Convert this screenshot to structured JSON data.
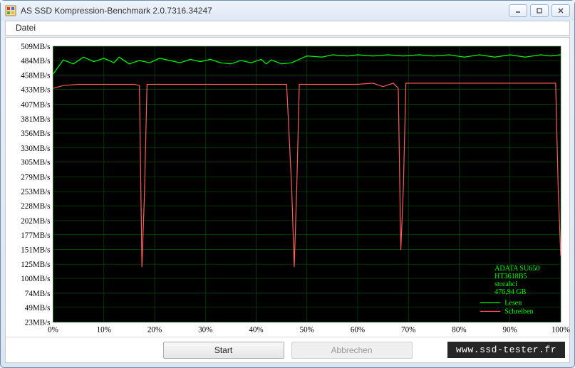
{
  "window": {
    "title": "AS SSD Kompression-Benchmark 2.0.7316.34247"
  },
  "menu": {
    "file": "Datei"
  },
  "chart": {
    "type": "line",
    "background_color": "#000000",
    "grid_color": "#004c00",
    "axis_text_color": "#000000",
    "axis_fontsize": 11,
    "y_axis": {
      "labels": [
        "509MB/s",
        "484MB/s",
        "458MB/s",
        "433MB/s",
        "407MB/s",
        "381MB/s",
        "356MB/s",
        "330MB/s",
        "305MB/s",
        "279MB/s",
        "253MB/s",
        "228MB/s",
        "202MB/s",
        "177MB/s",
        "151MB/s",
        "125MB/s",
        "100MB/s",
        "74MB/s",
        "49MB/s",
        "23MB/s"
      ],
      "values": [
        509,
        484,
        458,
        433,
        407,
        381,
        356,
        330,
        305,
        279,
        253,
        228,
        202,
        177,
        151,
        125,
        100,
        74,
        49,
        23
      ],
      "min": 23,
      "max": 509
    },
    "x_axis": {
      "labels": [
        "0%",
        "10%",
        "20%",
        "30%",
        "40%",
        "50%",
        "60%",
        "70%",
        "80%",
        "90%",
        "100%"
      ],
      "values": [
        0,
        10,
        20,
        30,
        40,
        50,
        60,
        70,
        80,
        90,
        100
      ],
      "min": 0,
      "max": 100
    },
    "series": [
      {
        "name": "Lesen",
        "color": "#00ff00",
        "line_width": 1.2,
        "data": [
          [
            0,
            460
          ],
          [
            2,
            485
          ],
          [
            4,
            478
          ],
          [
            6,
            490
          ],
          [
            8,
            482
          ],
          [
            10,
            488
          ],
          [
            12,
            480
          ],
          [
            13,
            490
          ],
          [
            15,
            478
          ],
          [
            17,
            484
          ],
          [
            19,
            480
          ],
          [
            21,
            488
          ],
          [
            23,
            484
          ],
          [
            25,
            480
          ],
          [
            27,
            486
          ],
          [
            29,
            482
          ],
          [
            31,
            486
          ],
          [
            33,
            480
          ],
          [
            35,
            478
          ],
          [
            37,
            484
          ],
          [
            39,
            480
          ],
          [
            41,
            486
          ],
          [
            42,
            478
          ],
          [
            43,
            485
          ],
          [
            45,
            478
          ],
          [
            47,
            480
          ],
          [
            50,
            492
          ],
          [
            53,
            490
          ],
          [
            55,
            494
          ],
          [
            58,
            492
          ],
          [
            60,
            494
          ],
          [
            63,
            492
          ],
          [
            66,
            494
          ],
          [
            69,
            492
          ],
          [
            72,
            494
          ],
          [
            75,
            492
          ],
          [
            78,
            494
          ],
          [
            81,
            490
          ],
          [
            84,
            494
          ],
          [
            87,
            490
          ],
          [
            90,
            494
          ],
          [
            93,
            490
          ],
          [
            96,
            494
          ],
          [
            98,
            492
          ],
          [
            100,
            494
          ]
        ]
      },
      {
        "name": "Schreiben",
        "color": "#ff5a5a",
        "line_width": 1.2,
        "data": [
          [
            0,
            435
          ],
          [
            2,
            440
          ],
          [
            5,
            442
          ],
          [
            8,
            442
          ],
          [
            11,
            442
          ],
          [
            14,
            442
          ],
          [
            16,
            442
          ],
          [
            17,
            440
          ],
          [
            17.5,
            120
          ],
          [
            18,
            250
          ],
          [
            18.5,
            442
          ],
          [
            21,
            442
          ],
          [
            25,
            442
          ],
          [
            30,
            442
          ],
          [
            35,
            442
          ],
          [
            40,
            442
          ],
          [
            44,
            442
          ],
          [
            46,
            442
          ],
          [
            47,
            260
          ],
          [
            47.5,
            120
          ],
          [
            48,
            260
          ],
          [
            48.5,
            442
          ],
          [
            52,
            442
          ],
          [
            56,
            442
          ],
          [
            60,
            442
          ],
          [
            63,
            444
          ],
          [
            65,
            438
          ],
          [
            67,
            444
          ],
          [
            68,
            435
          ],
          [
            68.5,
            150
          ],
          [
            69,
            260
          ],
          [
            69.5,
            444
          ],
          [
            73,
            444
          ],
          [
            78,
            444
          ],
          [
            82,
            444
          ],
          [
            86,
            444
          ],
          [
            90,
            444
          ],
          [
            94,
            444
          ],
          [
            97,
            444
          ],
          [
            99,
            444
          ],
          [
            99.5,
            260
          ],
          [
            100,
            140
          ]
        ]
      }
    ],
    "info_box": {
      "lines": [
        "ADATA SU650",
        "HT3618B5",
        "storahci",
        "476,94 GB"
      ],
      "text_color": "#00ff00",
      "fontsize": 10
    },
    "legend": {
      "items": [
        {
          "label": "Lesen",
          "color": "#00ff00"
        },
        {
          "label": "Schreiben",
          "color": "#ff5a5a"
        }
      ],
      "text_color": "#00ff00",
      "fontsize": 10
    }
  },
  "buttons": {
    "start": "Start",
    "abort": "Abbrechen"
  },
  "watermark": "www.ssd-tester.fr"
}
